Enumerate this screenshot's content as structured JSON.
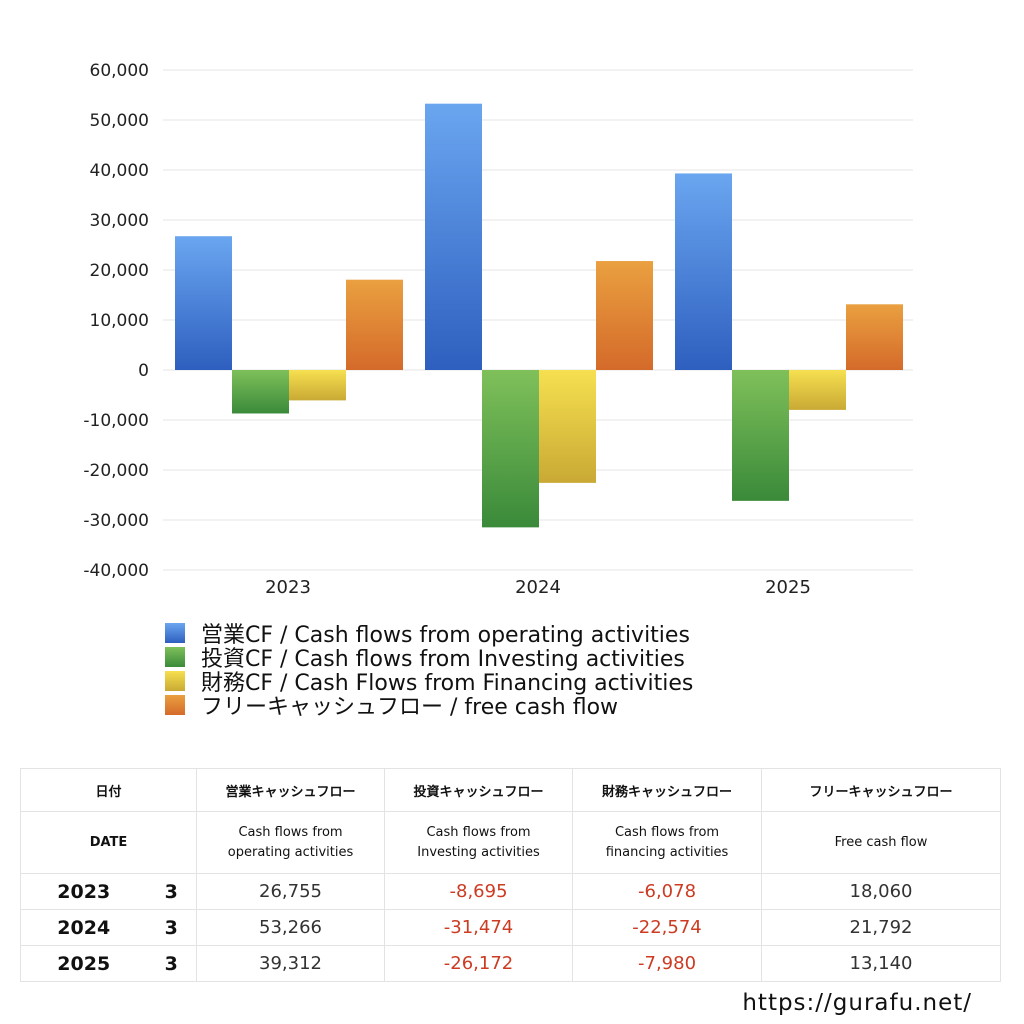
{
  "chart_data": {
    "type": "bar",
    "categories": [
      "2023",
      "2024",
      "2025"
    ],
    "ylim": [
      -40000,
      60000
    ],
    "yticks": [
      60000,
      50000,
      40000,
      30000,
      20000,
      10000,
      0,
      -10000,
      -20000,
      -30000,
      -40000
    ],
    "ytick_labels": [
      "60,000",
      "50,000",
      "40,000",
      "30,000",
      "20,000",
      "10,000",
      "0",
      "-10,000",
      "-20,000",
      "-30,000",
      "-40,000"
    ],
    "grid": true,
    "legend_position": "bottom-left",
    "series": [
      {
        "name": "営業CF / Cash flows from operating activities",
        "values": [
          26755,
          53266,
          39312
        ],
        "color_top": "#6aa6f0",
        "color_bottom": "#2e5fbf"
      },
      {
        "name": "投資CF / Cash flows from Investing activities",
        "values": [
          -8695,
          -31474,
          -26172
        ],
        "color_top": "#7fc05a",
        "color_bottom": "#3a8a3a"
      },
      {
        "name": "財務CF / Cash Flows from Financing activities",
        "values": [
          -6078,
          -22574,
          -7980
        ],
        "color_top": "#f6e050",
        "color_bottom": "#c9a934"
      },
      {
        "name": "フリーキャッシュフロー / free cash flow",
        "values": [
          18060,
          21792,
          13140
        ],
        "color_top": "#eaa040",
        "color_bottom": "#d46a2a"
      }
    ]
  },
  "table": {
    "header_jp": [
      "日付",
      "営業キャッシュフロー",
      "投資キャッシュフロー",
      "財務キャッシュフロー",
      "フリーキャッシュフロー"
    ],
    "header_en": {
      "date": "DATE",
      "operating": [
        "Cash flows from",
        "operating activities"
      ],
      "investing": [
        "Cash flows from",
        "Investing activities"
      ],
      "financing": [
        "Cash flows from",
        "financing activities"
      ],
      "free": [
        "Free cash flow"
      ]
    },
    "rows": [
      {
        "year": "2023",
        "month": "3",
        "operating": "26,755",
        "investing": "-8,695",
        "financing": "-6,078",
        "free": "18,060"
      },
      {
        "year": "2024",
        "month": "3",
        "operating": "53,266",
        "investing": "-31,474",
        "financing": "-22,574",
        "free": "21,792"
      },
      {
        "year": "2025",
        "month": "3",
        "operating": "39,312",
        "investing": "-26,172",
        "financing": "-7,980",
        "free": "13,140"
      }
    ],
    "negative_color": "#cc3b22"
  },
  "footer": {
    "url": "https://gurafu.net/"
  }
}
